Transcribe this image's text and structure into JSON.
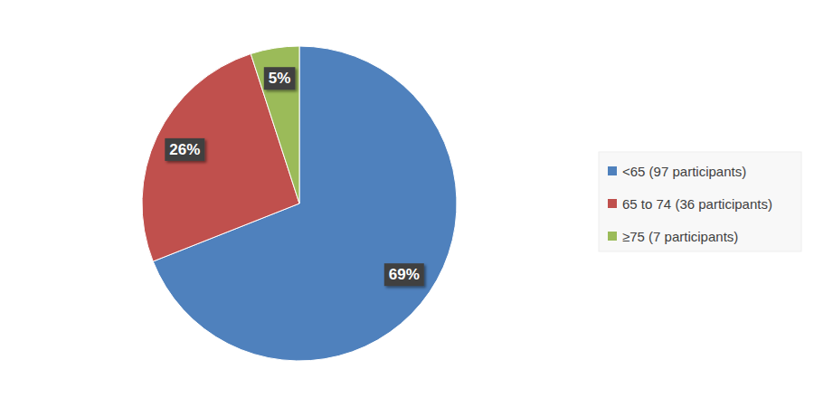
{
  "chart_data": {
    "type": "pie",
    "categories": [
      "<65 (97 participants)",
      "65 to 74 (36 participants)",
      "≥75 (7 participants)"
    ],
    "values": [
      69,
      26,
      5
    ],
    "value_labels": [
      "69%",
      "26%",
      "5%"
    ],
    "colors": [
      "#4f81bd",
      "#c0504d",
      "#9bbb59"
    ],
    "data_labels": true,
    "legend": "right"
  }
}
